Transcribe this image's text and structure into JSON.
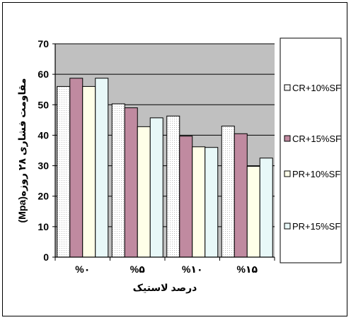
{
  "chart_data": {
    "type": "bar",
    "categories": [
      "%۰",
      "%۵",
      "%۱۰",
      "%۱۵"
    ],
    "series": [
      {
        "name": "CR+10%SF",
        "values": [
          56,
          50.3,
          46.3,
          43
        ]
      },
      {
        "name": "CR+15%SF",
        "values": [
          58.7,
          49,
          39.7,
          40.5
        ]
      },
      {
        "name": "PR+10%SF",
        "values": [
          56,
          42.8,
          36.2,
          29.8
        ]
      },
      {
        "name": "PR+15%SF",
        "values": [
          58.7,
          45.7,
          36,
          32.5
        ]
      }
    ],
    "xlabel": "درصد لاستیک",
    "ylabel": "مقاومت فشاری ۲۸ روزه(Mpa)",
    "ylim": [
      0,
      70
    ],
    "yticks": [
      0,
      10,
      20,
      30,
      40,
      50,
      60,
      70
    ],
    "grid": true,
    "legend_position": "right",
    "colors": {
      "plot_background": "#c0c0c0",
      "series": [
        "#ffffff",
        "#c08aa0",
        "#ffffe8",
        "#e8f8f8"
      ],
      "gridline": "#000000"
    }
  }
}
